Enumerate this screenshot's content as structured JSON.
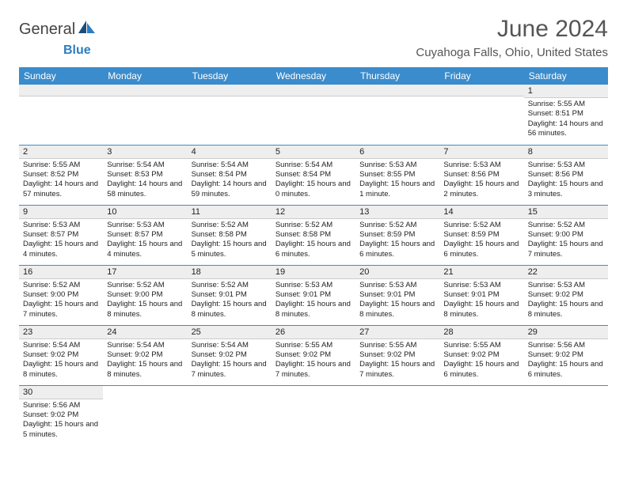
{
  "logo": {
    "text1": "General",
    "text2": "Blue"
  },
  "title": "June 2024",
  "location": "Cuyahoga Falls, Ohio, United States",
  "header_bg": "#3b8ccc",
  "weekdays": [
    "Sunday",
    "Monday",
    "Tuesday",
    "Wednesday",
    "Thursday",
    "Friday",
    "Saturday"
  ],
  "weeks": [
    [
      null,
      null,
      null,
      null,
      null,
      null,
      {
        "n": "1",
        "sr": "5:55 AM",
        "ss": "8:51 PM",
        "dl": "14 hours and 56 minutes."
      }
    ],
    [
      {
        "n": "2",
        "sr": "5:55 AM",
        "ss": "8:52 PM",
        "dl": "14 hours and 57 minutes."
      },
      {
        "n": "3",
        "sr": "5:54 AM",
        "ss": "8:53 PM",
        "dl": "14 hours and 58 minutes."
      },
      {
        "n": "4",
        "sr": "5:54 AM",
        "ss": "8:54 PM",
        "dl": "14 hours and 59 minutes."
      },
      {
        "n": "5",
        "sr": "5:54 AM",
        "ss": "8:54 PM",
        "dl": "15 hours and 0 minutes."
      },
      {
        "n": "6",
        "sr": "5:53 AM",
        "ss": "8:55 PM",
        "dl": "15 hours and 1 minute."
      },
      {
        "n": "7",
        "sr": "5:53 AM",
        "ss": "8:56 PM",
        "dl": "15 hours and 2 minutes."
      },
      {
        "n": "8",
        "sr": "5:53 AM",
        "ss": "8:56 PM",
        "dl": "15 hours and 3 minutes."
      }
    ],
    [
      {
        "n": "9",
        "sr": "5:53 AM",
        "ss": "8:57 PM",
        "dl": "15 hours and 4 minutes."
      },
      {
        "n": "10",
        "sr": "5:53 AM",
        "ss": "8:57 PM",
        "dl": "15 hours and 4 minutes."
      },
      {
        "n": "11",
        "sr": "5:52 AM",
        "ss": "8:58 PM",
        "dl": "15 hours and 5 minutes."
      },
      {
        "n": "12",
        "sr": "5:52 AM",
        "ss": "8:58 PM",
        "dl": "15 hours and 6 minutes."
      },
      {
        "n": "13",
        "sr": "5:52 AM",
        "ss": "8:59 PM",
        "dl": "15 hours and 6 minutes."
      },
      {
        "n": "14",
        "sr": "5:52 AM",
        "ss": "8:59 PM",
        "dl": "15 hours and 6 minutes."
      },
      {
        "n": "15",
        "sr": "5:52 AM",
        "ss": "9:00 PM",
        "dl": "15 hours and 7 minutes."
      }
    ],
    [
      {
        "n": "16",
        "sr": "5:52 AM",
        "ss": "9:00 PM",
        "dl": "15 hours and 7 minutes."
      },
      {
        "n": "17",
        "sr": "5:52 AM",
        "ss": "9:00 PM",
        "dl": "15 hours and 8 minutes."
      },
      {
        "n": "18",
        "sr": "5:52 AM",
        "ss": "9:01 PM",
        "dl": "15 hours and 8 minutes."
      },
      {
        "n": "19",
        "sr": "5:53 AM",
        "ss": "9:01 PM",
        "dl": "15 hours and 8 minutes."
      },
      {
        "n": "20",
        "sr": "5:53 AM",
        "ss": "9:01 PM",
        "dl": "15 hours and 8 minutes."
      },
      {
        "n": "21",
        "sr": "5:53 AM",
        "ss": "9:01 PM",
        "dl": "15 hours and 8 minutes."
      },
      {
        "n": "22",
        "sr": "5:53 AM",
        "ss": "9:02 PM",
        "dl": "15 hours and 8 minutes."
      }
    ],
    [
      {
        "n": "23",
        "sr": "5:54 AM",
        "ss": "9:02 PM",
        "dl": "15 hours and 8 minutes."
      },
      {
        "n": "24",
        "sr": "5:54 AM",
        "ss": "9:02 PM",
        "dl": "15 hours and 8 minutes."
      },
      {
        "n": "25",
        "sr": "5:54 AM",
        "ss": "9:02 PM",
        "dl": "15 hours and 7 minutes."
      },
      {
        "n": "26",
        "sr": "5:55 AM",
        "ss": "9:02 PM",
        "dl": "15 hours and 7 minutes."
      },
      {
        "n": "27",
        "sr": "5:55 AM",
        "ss": "9:02 PM",
        "dl": "15 hours and 7 minutes."
      },
      {
        "n": "28",
        "sr": "5:55 AM",
        "ss": "9:02 PM",
        "dl": "15 hours and 6 minutes."
      },
      {
        "n": "29",
        "sr": "5:56 AM",
        "ss": "9:02 PM",
        "dl": "15 hours and 6 minutes."
      }
    ],
    [
      {
        "n": "30",
        "sr": "5:56 AM",
        "ss": "9:02 PM",
        "dl": "15 hours and 5 minutes."
      },
      null,
      null,
      null,
      null,
      null,
      null
    ]
  ],
  "labels": {
    "sunrise": "Sunrise:",
    "sunset": "Sunset:",
    "daylight": "Daylight:"
  }
}
